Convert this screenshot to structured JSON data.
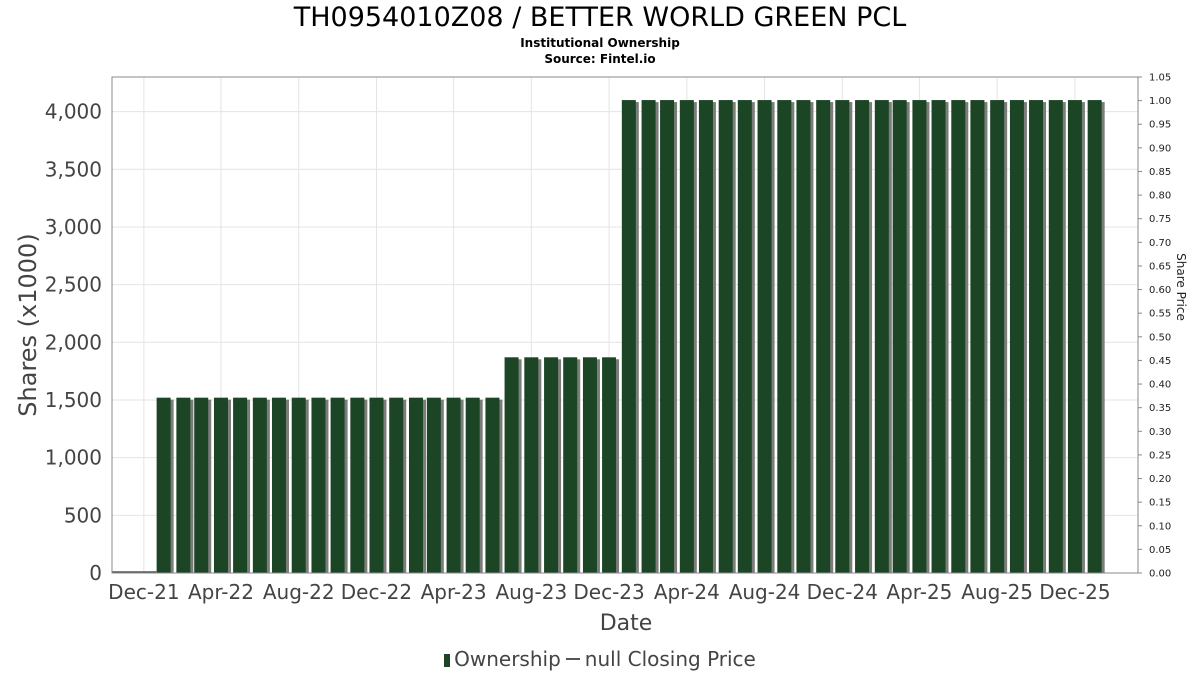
{
  "header": {
    "title": "TH0954010Z08 / BETTER WORLD GREEN PCL",
    "subtitle": "Institutional Ownership",
    "source": "Source: Fintel.io"
  },
  "legend": {
    "ownership_label": "Ownership",
    "price_label": "null Closing Price"
  },
  "colors": {
    "bar": "#1c4526",
    "bar_shadow": "#7a7d78",
    "grid": "#e4e4e4",
    "axis": "#888888"
  },
  "chart_data": {
    "type": "bar",
    "title": "TH0954010Z08 / BETTER WORLD GREEN PCL",
    "subtitle": "Institutional Ownership",
    "xlabel": "Date",
    "ylabel": "Shares (x1000)",
    "y2label": "Share Price",
    "ylim": [
      0,
      4300
    ],
    "y2lim": [
      0,
      1.05
    ],
    "yticks": [
      "0",
      "500",
      "1,000",
      "1,500",
      "2,000",
      "2,500",
      "3,000",
      "3,500",
      "4,000"
    ],
    "ytick_values": [
      0,
      500,
      1000,
      1500,
      2000,
      2500,
      3000,
      3500,
      4000
    ],
    "y2ticks": [
      "0.00",
      "0.05",
      "0.10",
      "0.15",
      "0.20",
      "0.25",
      "0.30",
      "0.35",
      "0.40",
      "0.45",
      "0.50",
      "0.55",
      "0.60",
      "0.65",
      "0.70",
      "0.75",
      "0.80",
      "0.85",
      "0.90",
      "0.95",
      "1.00",
      "1.05"
    ],
    "y2tick_values": [
      0,
      0.05,
      0.1,
      0.15,
      0.2,
      0.25,
      0.3,
      0.35,
      0.4,
      0.45,
      0.5,
      0.55,
      0.6,
      0.65,
      0.7,
      0.75,
      0.8,
      0.85,
      0.9,
      0.95,
      1.0,
      1.05
    ],
    "xticks": [
      "Dec-21",
      "Apr-22",
      "Aug-22",
      "Dec-22",
      "Apr-23",
      "Aug-23",
      "Dec-23",
      "Apr-24",
      "Aug-24",
      "Dec-24",
      "Apr-25",
      "Aug-25",
      "Dec-25"
    ],
    "xtick_dates": [
      "2021-12-01",
      "2022-04-01",
      "2022-08-01",
      "2022-12-01",
      "2023-04-01",
      "2023-08-01",
      "2023-12-01",
      "2024-04-01",
      "2024-08-01",
      "2024-12-01",
      "2025-04-01",
      "2025-08-01",
      "2025-12-01"
    ],
    "x_range": [
      "2021-10-12",
      "2026-03-10"
    ],
    "grid": true,
    "legend_position": "bottom",
    "series": [
      {
        "name": "Ownership",
        "x": [
          "2022-01-01",
          "2022-02-01",
          "2022-03-01",
          "2022-04-01",
          "2022-05-01",
          "2022-06-01",
          "2022-07-01",
          "2022-08-01",
          "2022-09-01",
          "2022-10-01",
          "2022-11-01",
          "2022-12-01",
          "2023-01-01",
          "2023-02-01",
          "2023-03-01",
          "2023-04-01",
          "2023-05-01",
          "2023-06-01",
          "2023-07-01",
          "2023-08-01",
          "2023-09-01",
          "2023-10-01",
          "2023-11-01",
          "2023-12-01",
          "2024-01-01",
          "2024-02-01",
          "2024-03-01",
          "2024-04-01",
          "2024-05-01",
          "2024-06-01",
          "2024-07-01",
          "2024-08-01",
          "2024-09-01",
          "2024-10-01",
          "2024-11-01",
          "2024-12-01",
          "2025-01-01",
          "2025-02-01",
          "2025-03-01",
          "2025-04-01",
          "2025-05-01",
          "2025-06-01",
          "2025-07-01",
          "2025-08-01",
          "2025-09-01",
          "2025-10-01",
          "2025-11-01",
          "2025-12-01",
          "2026-01-01"
        ],
        "values": [
          1520,
          1520,
          1520,
          1520,
          1520,
          1520,
          1520,
          1520,
          1520,
          1520,
          1520,
          1520,
          1520,
          1520,
          1520,
          1520,
          1520,
          1520,
          1870,
          1870,
          1870,
          1870,
          1870,
          1870,
          4100,
          4100,
          4100,
          4100,
          4100,
          4100,
          4100,
          4100,
          4100,
          4100,
          4100,
          4100,
          4100,
          4100,
          4100,
          4100,
          4100,
          4100,
          4100,
          4100,
          4100,
          4100,
          4100,
          4100,
          4100
        ]
      },
      {
        "name": "null Closing Price",
        "x": [],
        "values": []
      }
    ]
  }
}
